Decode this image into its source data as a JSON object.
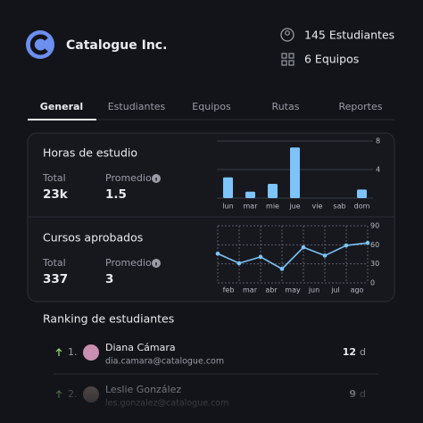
{
  "header": {
    "company": "Catalogue Inc.",
    "stats": [
      "145 Estudiantes",
      "6 Equipos"
    ]
  },
  "tabs": [
    "General",
    "Estudiantes",
    "Equipos",
    "Rutas",
    "Reportes"
  ],
  "cards": [
    {
      "title": "Horas de estudio",
      "metrics": [
        {
          "label": "Total",
          "value": "23k"
        },
        {
          "label": "Promedio",
          "value": "1.5"
        }
      ],
      "chart_data": {
        "type": "bar",
        "categories": [
          "lun",
          "mar",
          "mie",
          "jue",
          "vie",
          "sab",
          "dom"
        ],
        "values": [
          2.9,
          0.9,
          2,
          7.1,
          0,
          0,
          1.2
        ],
        "color": "#7cc4fa",
        "ylim": [
          0,
          8
        ],
        "yticks": [
          4,
          8
        ],
        "grid": true
      }
    },
    {
      "title": "Cursos aprobados",
      "metrics": [
        {
          "label": "Total",
          "value": "337"
        },
        {
          "label": "Promedio",
          "value": "3"
        }
      ],
      "chart_data": {
        "type": "line",
        "categories": [
          null,
          "feb",
          "mar",
          "abr",
          "may",
          "jun",
          "jul",
          "ago"
        ],
        "values": [
          46,
          31,
          41,
          22,
          56,
          43,
          59,
          63
        ],
        "color": "#7cc4fa",
        "ylim": [
          0,
          90
        ],
        "yticks": [
          0,
          30,
          60,
          90
        ],
        "grid": true
      }
    }
  ],
  "ranking": {
    "title": "Ranking de estudiantes",
    "rows": [
      {
        "rank": "1.",
        "name": "Diana Cámara",
        "email": "dia.camara@catalogue.com",
        "score": 12,
        "unit": "d"
      },
      {
        "rank": "2.",
        "name": "Leslie González",
        "email": "les.gonzalez@catalogue.com",
        "score": 9,
        "unit": "d"
      }
    ]
  }
}
